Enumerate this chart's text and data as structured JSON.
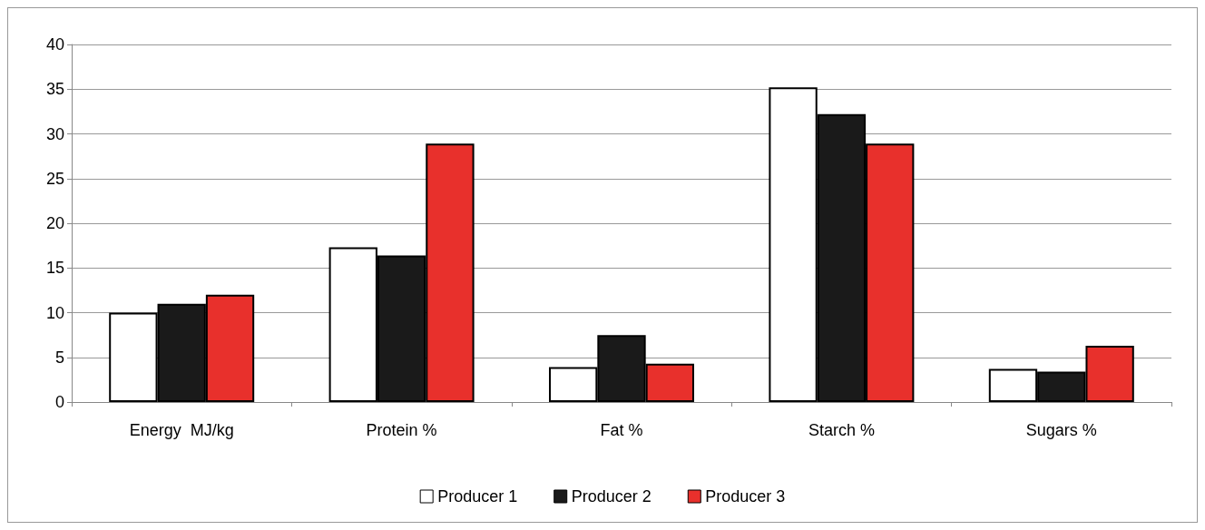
{
  "chart_data": {
    "type": "bar",
    "categories": [
      "Energy  MJ/kg",
      "Protein %",
      "Fat %",
      "Starch %",
      "Sugars %"
    ],
    "series": [
      {
        "name": "Producer 1",
        "color": "#ffffff",
        "values": [
          10,
          17.3,
          3.9,
          35.2,
          3.7
        ]
      },
      {
        "name": "Producer 2",
        "color": "#1a1a1a",
        "values": [
          11,
          16.4,
          7.5,
          32.2,
          3.4
        ]
      },
      {
        "name": "Producer 3",
        "color": "#e8302c",
        "values": [
          12,
          28.9,
          4.3,
          28.9,
          6.3
        ]
      }
    ],
    "ylim": [
      0,
      40
    ],
    "yticks": [
      0,
      5,
      10,
      15,
      20,
      25,
      30,
      35,
      40
    ],
    "grid": "y",
    "legend": "bottom"
  }
}
